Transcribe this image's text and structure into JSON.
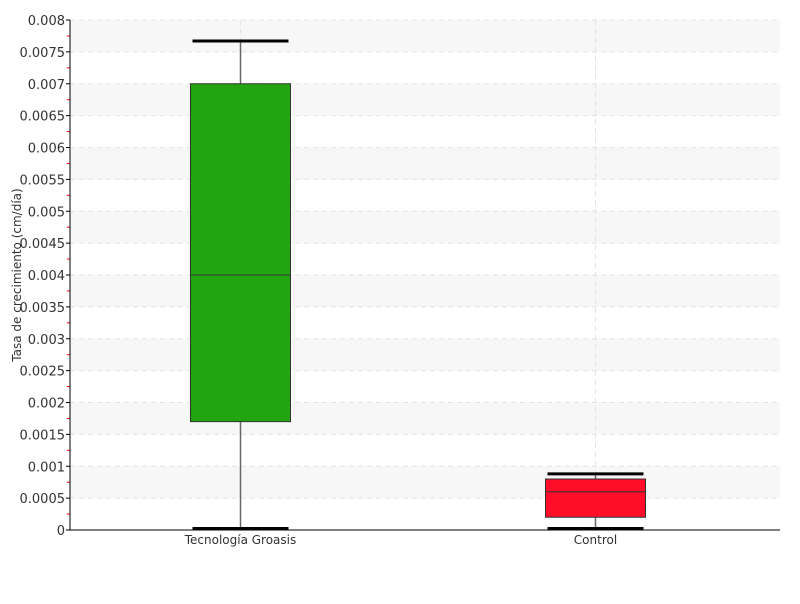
{
  "chart_data": {
    "type": "boxplot",
    "title": "",
    "xlabel": "",
    "ylabel": "Tasa de crecimiento (cm/día)",
    "ylim": [
      0,
      0.008
    ],
    "yticks": [
      "0",
      "0.0005",
      "0.001",
      "0.0015",
      "0.002",
      "0.0025",
      "0.003",
      "0.0035",
      "0.004",
      "0.0045",
      "0.005",
      "0.0055",
      "0.006",
      "0.0065",
      "0.007",
      "0.0075",
      "0.008"
    ],
    "grid": true,
    "categories": [
      "Tecnología Groasis",
      "Control"
    ],
    "boxes": [
      {
        "category": "Tecnología Groasis",
        "min": 0,
        "q1": 0.0017,
        "median": 0.004,
        "q3": 0.007,
        "max": 0.00767,
        "color": "#22a511"
      },
      {
        "category": "Control",
        "min": 0,
        "q1": 0.0002,
        "median": 0.0006,
        "q3": 0.0008,
        "max": 0.00088,
        "color": "#ff0d29"
      }
    ]
  }
}
